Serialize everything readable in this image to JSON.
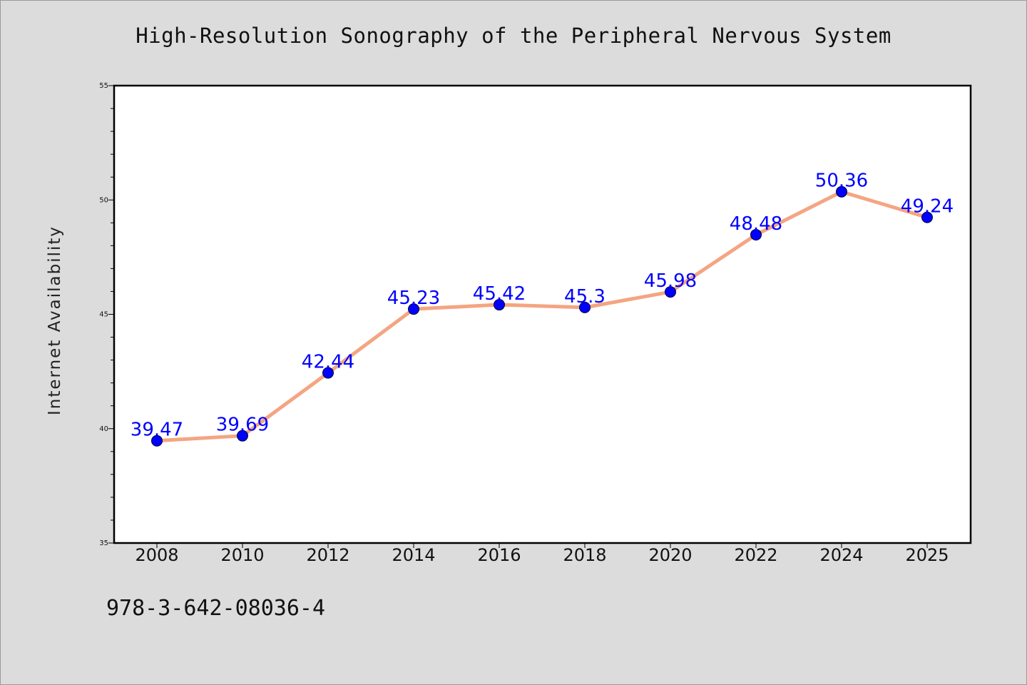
{
  "page": {
    "title": "High-Resolution Sonography of the Peripheral Nervous System",
    "footer_code": "978-3-642-08036-4"
  },
  "colors": {
    "background": "#dcdcdc",
    "plot_area": "#ffffff",
    "line": "#f4a582",
    "marker": "#0000ff",
    "data_label": "#0000ff"
  },
  "chart_data": {
    "type": "line",
    "title": "High-Resolution Sonography of the Peripheral Nervous System",
    "xlabel": "",
    "ylabel": "Internet Availability",
    "categories": [
      "2008",
      "2010",
      "2012",
      "2014",
      "2016",
      "2018",
      "2020",
      "2022",
      "2024",
      "2025"
    ],
    "series": [
      {
        "values": [
          39.47,
          39.69,
          42.44,
          45.23,
          45.42,
          45.3,
          45.98,
          48.48,
          50.36,
          49.24
        ],
        "labels": [
          "39.47",
          "39.69",
          "42.44",
          "45.23",
          "45.42",
          "45.3",
          "45.98",
          "48.48",
          "50.36",
          "49.24"
        ]
      }
    ],
    "ylim": [
      35,
      55
    ],
    "yticks_major": [
      35,
      40,
      45,
      50,
      55
    ],
    "yticks_major_labels": [
      "35",
      "40",
      "45",
      "50",
      "55"
    ],
    "ytick_minor_step": 1,
    "grid": false,
    "legend": "none",
    "marker": "circle"
  }
}
